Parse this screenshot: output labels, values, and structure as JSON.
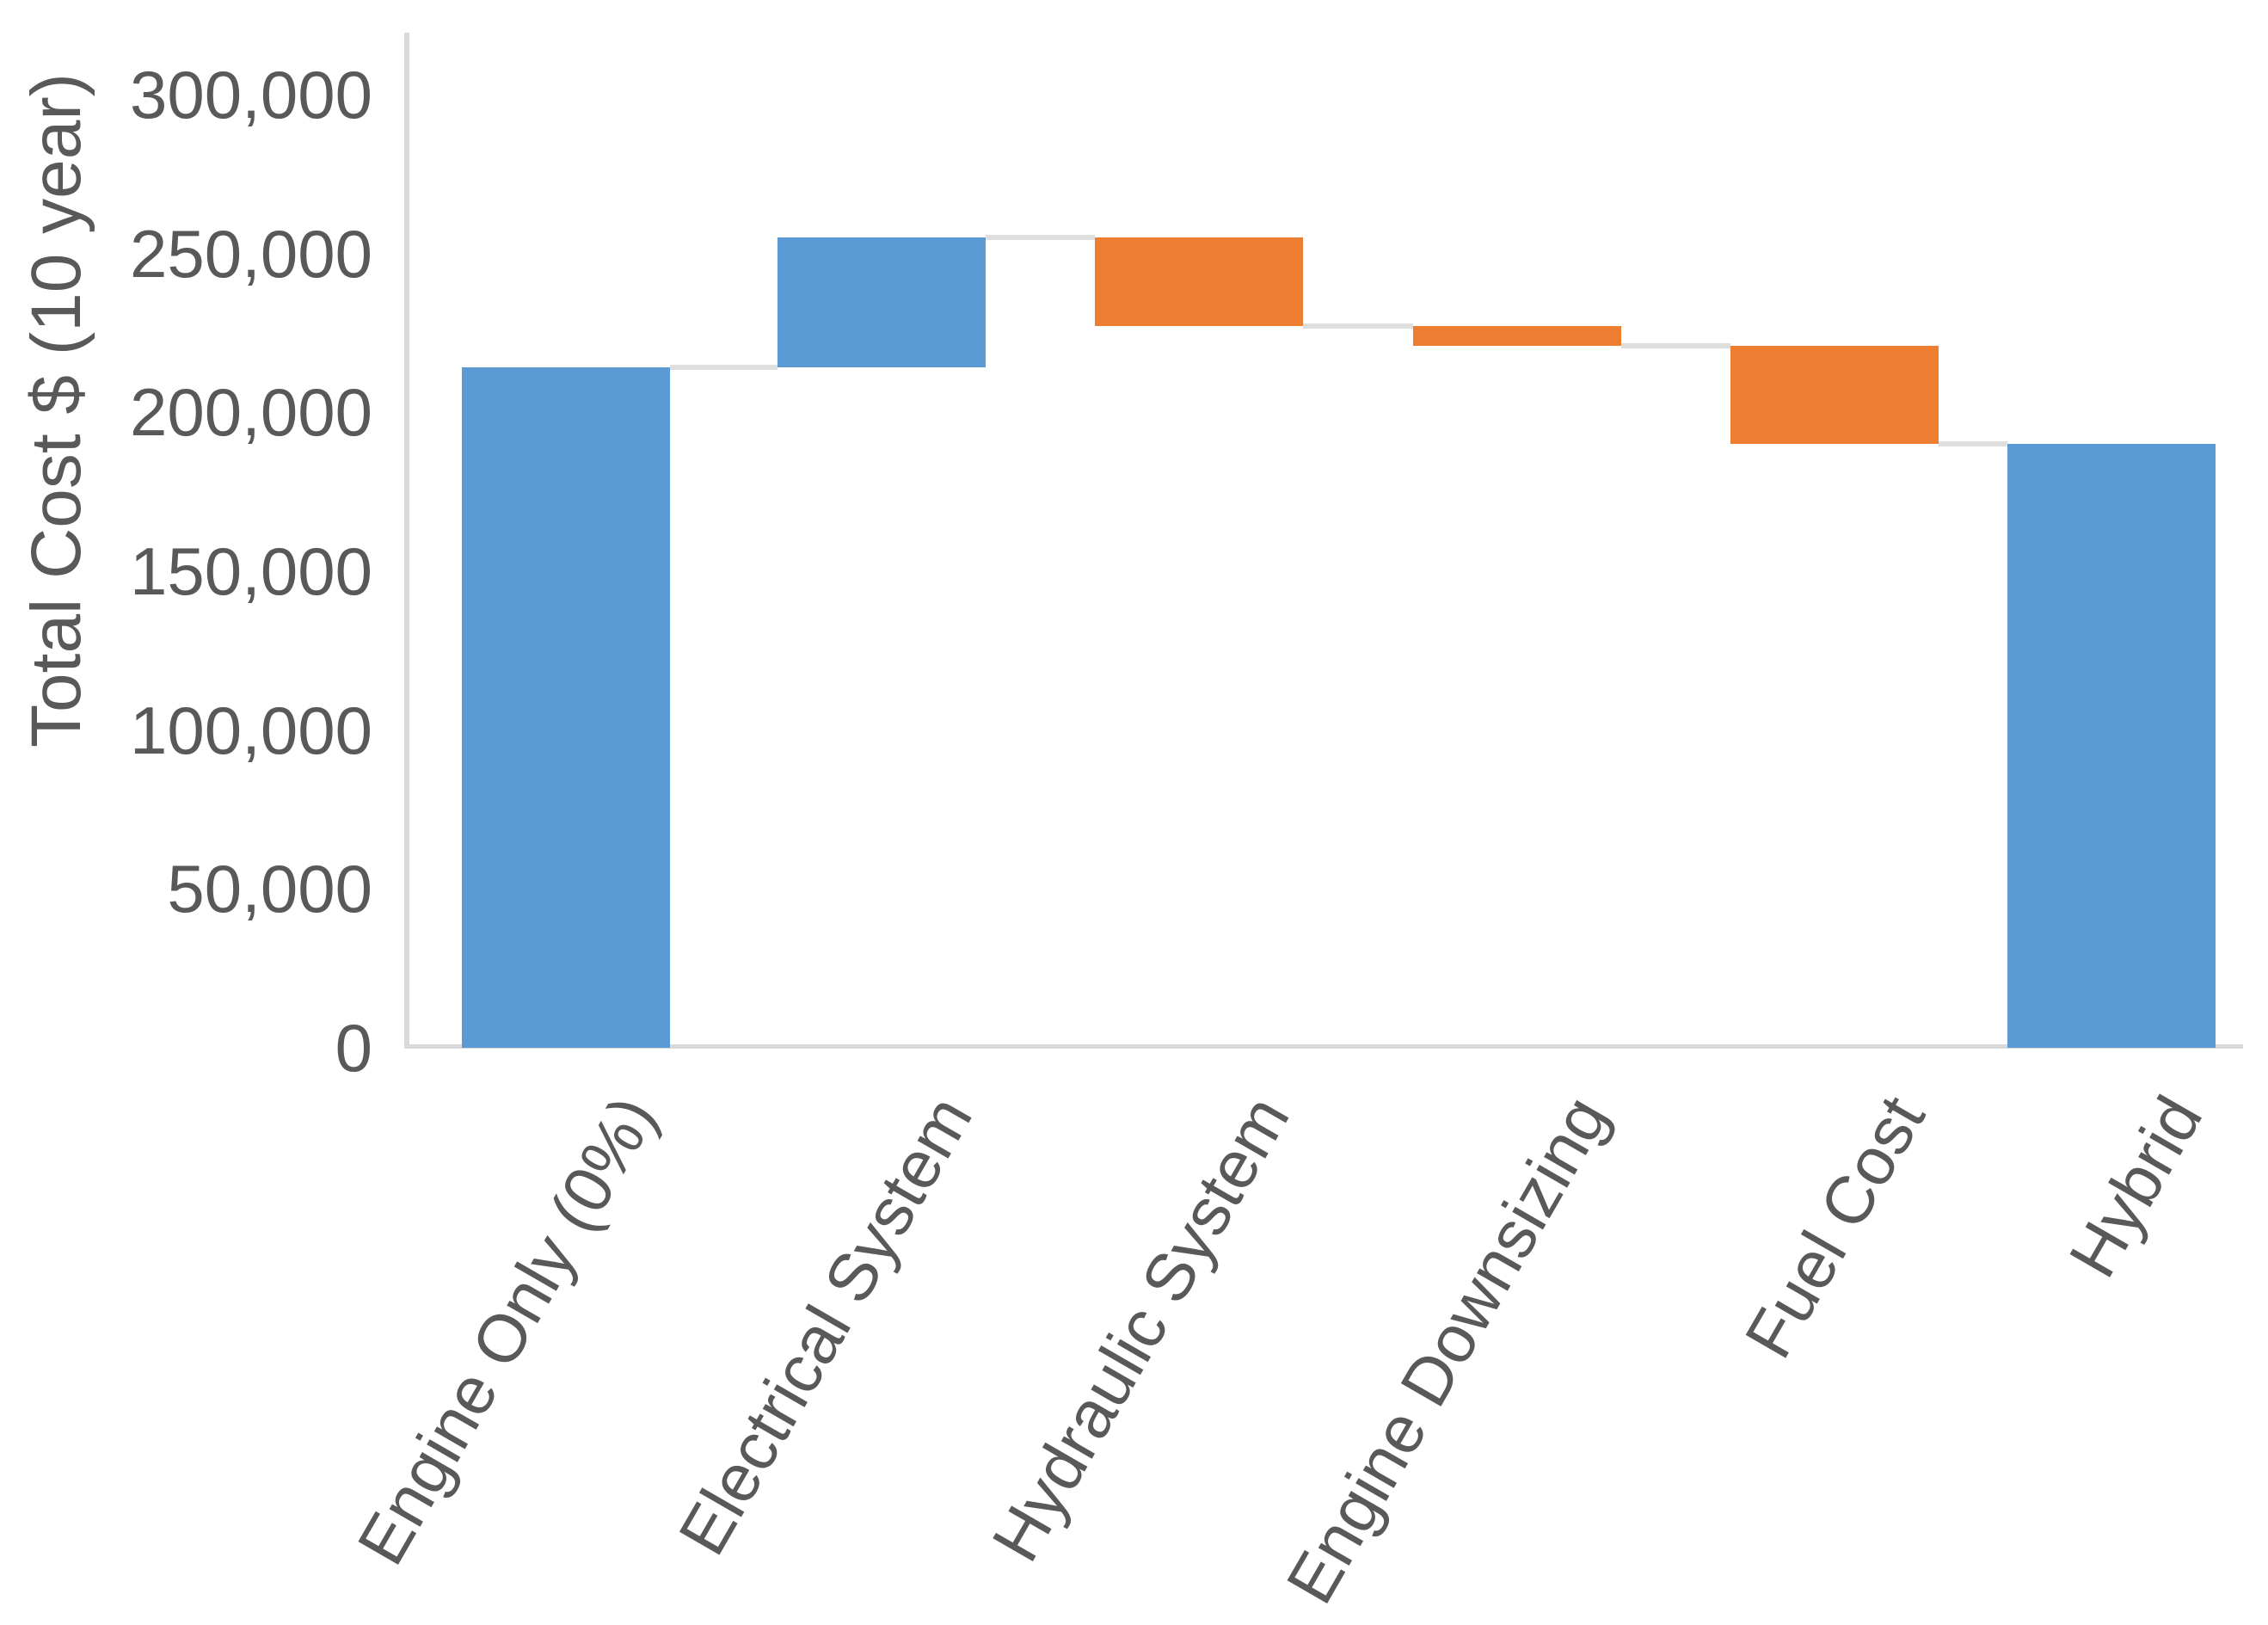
{
  "chart_data": {
    "type": "bar",
    "subtype": "waterfall",
    "title": "",
    "xlabel": "",
    "ylabel": "Total Cost $ (10 year)",
    "ylim": [
      0,
      320000
    ],
    "grid": false,
    "legend": false,
    "categories": [
      "Engine Only (0%)",
      "Electrical System",
      "Hydraulic System",
      "Engine Downsizing",
      "Fuel Cost",
      "Hybrid"
    ],
    "segments": [
      {
        "category": "Engine Only (0%)",
        "start": 0,
        "end": 214000,
        "change": 214000,
        "role": "total",
        "color": "#5B9BD5"
      },
      {
        "category": "Electrical System",
        "start": 214000,
        "end": 255000,
        "change": 41000,
        "role": "increase",
        "color": "#5B9BD5"
      },
      {
        "category": "Hydraulic System",
        "start": 255000,
        "end": 227000,
        "change": -28000,
        "role": "decrease",
        "color": "#ED7D31"
      },
      {
        "category": "Engine Downsizing",
        "start": 227000,
        "end": 221000,
        "change": -6000,
        "role": "decrease",
        "color": "#ED7D31"
      },
      {
        "category": "Fuel Cost",
        "start": 221000,
        "end": 190000,
        "change": -31000,
        "role": "decrease",
        "color": "#ED7D31"
      },
      {
        "category": "Hybrid",
        "start": 0,
        "end": 190000,
        "change": 190000,
        "role": "total",
        "color": "#5B9BD5"
      }
    ],
    "connector_levels": [
      214000,
      255000,
      227000,
      221000,
      190000
    ],
    "yticks": [
      {
        "value": 0,
        "label": "0"
      },
      {
        "value": 50000,
        "label": "50,000"
      },
      {
        "value": 100000,
        "label": "100,000"
      },
      {
        "value": 150000,
        "label": "150,000"
      },
      {
        "value": 200000,
        "label": "200,000"
      },
      {
        "value": 250000,
        "label": "250,000"
      },
      {
        "value": 300000,
        "label": "300,000"
      }
    ],
    "colors": {
      "total_and_increase": "#5B9BD5",
      "decrease": "#ED7D31",
      "connector": "#DEDEDE",
      "axis": "#D9D9D9",
      "text": "#595959"
    }
  }
}
